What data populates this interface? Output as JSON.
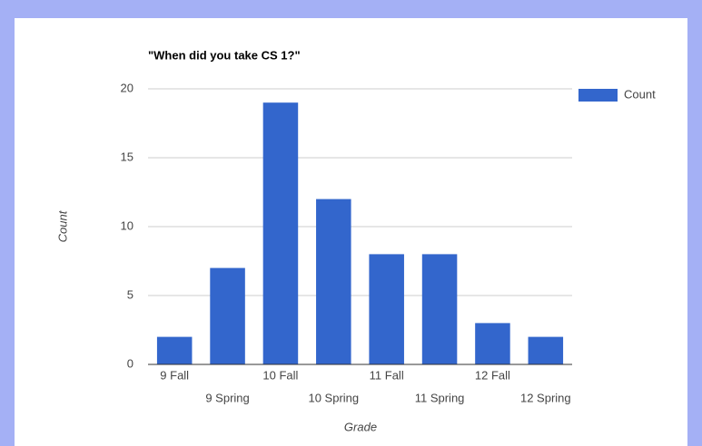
{
  "chart_data": {
    "type": "bar",
    "title": "\"When did you take CS 1?\"",
    "categories": [
      "9 Fall",
      "9 Spring",
      "10 Fall",
      "10 Spring",
      "11 Fall",
      "11 Spring",
      "12 Fall",
      "12 Spring"
    ],
    "series": [
      {
        "name": "Count",
        "color": "#3366cc",
        "values": [
          2,
          7,
          19,
          12,
          8,
          8,
          3,
          2
        ]
      }
    ],
    "x_label": "Grade",
    "y_label": "Count",
    "ylim": [
      0,
      20
    ],
    "yticks": [
      0,
      5,
      10,
      15,
      20
    ],
    "grid": true,
    "legend": "right"
  }
}
